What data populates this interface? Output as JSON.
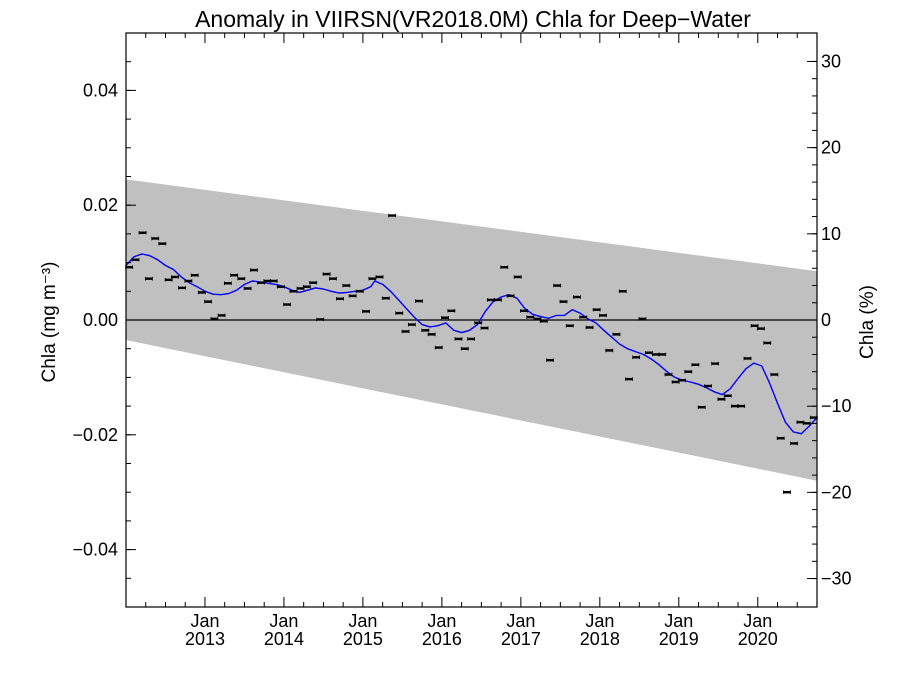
{
  "chart_data": {
    "type": "scatter",
    "title": "Anomaly in VIIRSN(VR2018.0M) Chla for Deep−Water",
    "ylabel_left": "Chla (mg m⁻³)",
    "ylabel_right": "Chla (%)",
    "xlim": [
      2012.0,
      2020.75
    ],
    "ylim_left": [
      -0.05,
      0.05
    ],
    "ylim_right": [
      -33.3,
      33.3
    ],
    "x_ticks": [
      {
        "x": 2013.0,
        "month": "Jan",
        "year": "2013"
      },
      {
        "x": 2014.0,
        "month": "Jan",
        "year": "2014"
      },
      {
        "x": 2015.0,
        "month": "Jan",
        "year": "2015"
      },
      {
        "x": 2016.0,
        "month": "Jan",
        "year": "2016"
      },
      {
        "x": 2017.0,
        "month": "Jan",
        "year": "2017"
      },
      {
        "x": 2018.0,
        "month": "Jan",
        "year": "2018"
      },
      {
        "x": 2019.0,
        "month": "Jan",
        "year": "2019"
      },
      {
        "x": 2020.0,
        "month": "Jan",
        "year": "2020"
      }
    ],
    "y_ticks_left": [
      {
        "v": 0.04,
        "label": "0.04"
      },
      {
        "v": 0.02,
        "label": "0.02"
      },
      {
        "v": 0.0,
        "label": "0.00"
      },
      {
        "v": -0.02,
        "label": "−0.02"
      },
      {
        "v": -0.04,
        "label": "−0.04"
      }
    ],
    "y_ticks_right": [
      {
        "v": 30,
        "label": "30"
      },
      {
        "v": 20,
        "label": "20"
      },
      {
        "v": 10,
        "label": "10"
      },
      {
        "v": 0,
        "label": "0"
      },
      {
        "v": -10,
        "label": "−10"
      },
      {
        "v": -20,
        "label": "−20"
      },
      {
        "v": -30,
        "label": "−30"
      }
    ],
    "band": {
      "x": [
        2012.0,
        2020.75
      ],
      "upper": [
        0.0245,
        0.0085
      ],
      "lower": [
        -0.0035,
        -0.028
      ],
      "color": "#c0c0c0"
    },
    "zero_line": 0.0,
    "points": {
      "color": "#000000",
      "x": [
        2012.04,
        2012.12,
        2012.21,
        2012.29,
        2012.37,
        2012.46,
        2012.54,
        2012.62,
        2012.71,
        2012.79,
        2012.87,
        2012.96,
        2013.04,
        2013.12,
        2013.21,
        2013.29,
        2013.37,
        2013.46,
        2013.54,
        2013.62,
        2013.71,
        2013.79,
        2013.87,
        2013.96,
        2014.04,
        2014.12,
        2014.21,
        2014.29,
        2014.37,
        2014.46,
        2014.54,
        2014.62,
        2014.71,
        2014.79,
        2014.87,
        2014.96,
        2015.04,
        2015.12,
        2015.21,
        2015.29,
        2015.37,
        2015.46,
        2015.54,
        2015.62,
        2015.71,
        2015.79,
        2015.87,
        2015.96,
        2016.04,
        2016.12,
        2016.21,
        2016.29,
        2016.37,
        2016.46,
        2016.54,
        2016.62,
        2016.71,
        2016.79,
        2016.87,
        2016.96,
        2017.04,
        2017.12,
        2017.21,
        2017.29,
        2017.37,
        2017.46,
        2017.54,
        2017.62,
        2017.71,
        2017.79,
        2017.87,
        2017.96,
        2018.04,
        2018.12,
        2018.21,
        2018.29,
        2018.37,
        2018.46,
        2018.54,
        2018.62,
        2018.71,
        2018.79,
        2018.87,
        2018.96,
        2019.04,
        2019.12,
        2019.21,
        2019.29,
        2019.37,
        2019.46,
        2019.54,
        2019.62,
        2019.71,
        2019.79,
        2019.87,
        2019.96,
        2020.04,
        2020.12,
        2020.21,
        2020.29,
        2020.37,
        2020.46,
        2020.54,
        2020.62,
        2020.71
      ],
      "y": [
        0.0092,
        0.0105,
        0.0152,
        0.0072,
        0.0142,
        0.0133,
        0.007,
        0.0075,
        0.0056,
        0.0068,
        0.0078,
        0.0048,
        0.0032,
        0.0002,
        0.0008,
        0.0064,
        0.0078,
        0.0072,
        0.0055,
        0.0087,
        0.0065,
        0.0068,
        0.0068,
        0.0058,
        0.0027,
        0.005,
        0.0055,
        0.0058,
        0.0065,
        0.0001,
        0.008,
        0.0072,
        0.0037,
        0.006,
        0.0042,
        0.005,
        0.0015,
        0.0072,
        0.0075,
        0.0038,
        0.0182,
        0.0012,
        -0.002,
        -0.0008,
        0.0033,
        -0.0018,
        -0.0025,
        -0.0048,
        0.0004,
        0.0016,
        -0.0033,
        -0.005,
        -0.0033,
        -0.0005,
        -0.0014,
        0.0035,
        0.0035,
        0.0092,
        0.0042,
        0.0075,
        0.0016,
        0.0005,
        0.0002,
        -0.0002,
        -0.007,
        0.006,
        0.0032,
        -0.001,
        0.004,
        0.0005,
        -0.0013,
        0.0018,
        0.0008,
        -0.0053,
        -0.0025,
        0.005,
        -0.0103,
        -0.0065,
        0.0002,
        -0.0057,
        -0.006,
        -0.006,
        -0.0095,
        -0.0108,
        -0.0105,
        -0.009,
        -0.0078,
        -0.0152,
        -0.0115,
        -0.0076,
        -0.0138,
        -0.0132,
        -0.015,
        -0.015,
        -0.0067,
        -0.001,
        -0.0015,
        -0.004,
        -0.0095,
        -0.0206,
        -0.03,
        -0.0215,
        -0.0178,
        -0.018,
        -0.017
      ]
    },
    "smooth": {
      "color": "#0000ff",
      "x": [
        2012.0,
        2012.1,
        2012.2,
        2012.3,
        2012.4,
        2012.5,
        2012.6,
        2012.7,
        2012.8,
        2012.9,
        2013.0,
        2013.1,
        2013.2,
        2013.3,
        2013.4,
        2013.5,
        2013.6,
        2013.7,
        2013.8,
        2013.9,
        2014.0,
        2014.1,
        2014.2,
        2014.3,
        2014.4,
        2014.5,
        2014.6,
        2014.7,
        2014.8,
        2014.9,
        2015.0,
        2015.1,
        2015.15,
        2015.25,
        2015.35,
        2015.45,
        2015.55,
        2015.65,
        2015.75,
        2015.85,
        2015.95,
        2016.05,
        2016.15,
        2016.25,
        2016.35,
        2016.45,
        2016.55,
        2016.65,
        2016.75,
        2016.85,
        2016.95,
        2017.05,
        2017.15,
        2017.25,
        2017.35,
        2017.45,
        2017.55,
        2017.65,
        2017.75,
        2017.85,
        2017.95,
        2018.05,
        2018.15,
        2018.25,
        2018.35,
        2018.45,
        2018.55,
        2018.65,
        2018.75,
        2018.85,
        2018.95,
        2019.05,
        2019.15,
        2019.25,
        2019.35,
        2019.45,
        2019.55,
        2019.65,
        2019.75,
        2019.85,
        2019.95,
        2020.05,
        2020.15,
        2020.25,
        2020.35,
        2020.45,
        2020.55,
        2020.65,
        2020.75
      ],
      "y": [
        0.0095,
        0.011,
        0.0115,
        0.0112,
        0.0105,
        0.0095,
        0.0088,
        0.0075,
        0.0065,
        0.0058,
        0.005,
        0.0045,
        0.0044,
        0.0046,
        0.0052,
        0.0062,
        0.0068,
        0.0066,
        0.0064,
        0.0062,
        0.0058,
        0.0052,
        0.0048,
        0.0052,
        0.0056,
        0.0054,
        0.005,
        0.0047,
        0.0048,
        0.005,
        0.0052,
        0.0058,
        0.0068,
        0.0062,
        0.005,
        0.0035,
        0.002,
        0.0005,
        -0.0008,
        -0.0012,
        -0.001,
        -0.0005,
        -0.0018,
        -0.0022,
        -0.0018,
        -0.0008,
        0.0015,
        0.0032,
        0.004,
        0.0044,
        0.0038,
        0.002,
        0.001,
        0.0006,
        0.0003,
        0.0008,
        0.0008,
        0.0018,
        0.0012,
        0.0002,
        -0.0005,
        -0.0018,
        -0.003,
        -0.0042,
        -0.005,
        -0.0055,
        -0.006,
        -0.0068,
        -0.0078,
        -0.009,
        -0.01,
        -0.0105,
        -0.0108,
        -0.0112,
        -0.0118,
        -0.0125,
        -0.013,
        -0.012,
        -0.0102,
        -0.0085,
        -0.0075,
        -0.008,
        -0.011,
        -0.0145,
        -0.0178,
        -0.0195,
        -0.0198,
        -0.0185,
        -0.017
      ]
    }
  }
}
